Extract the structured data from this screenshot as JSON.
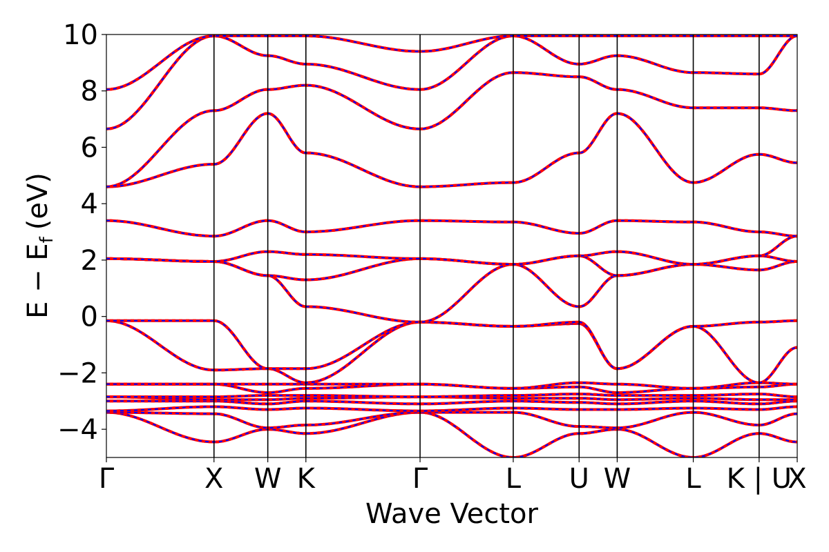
{
  "chart_data": {
    "type": "line",
    "title": "",
    "xlabel": "Wave Vector",
    "ylabel_main": "E − E",
    "ylabel_sub": "f",
    "ylabel_unit": "(eV)",
    "ylim": [
      -5,
      10
    ],
    "yticks": [
      {
        "value": 10,
        "label": "10"
      },
      {
        "value": 8,
        "label": "8"
      },
      {
        "value": 6,
        "label": "6"
      },
      {
        "value": 4,
        "label": "4"
      },
      {
        "value": 2,
        "label": "2"
      },
      {
        "value": 0,
        "label": "0"
      },
      {
        "value": -2,
        "label": "−2"
      },
      {
        "value": -4,
        "label": "−4"
      }
    ],
    "kpath_ticks": [
      {
        "label": "Γ",
        "k": 0.0
      },
      {
        "label": "X",
        "k": 1.0
      },
      {
        "label": "W",
        "k": 1.5
      },
      {
        "label": "K",
        "k": 1.854
      },
      {
        "label": "Γ",
        "k": 2.915
      },
      {
        "label": "L",
        "k": 3.781
      },
      {
        "label": "U",
        "k": 4.393
      },
      {
        "label": "W",
        "k": 4.747
      },
      {
        "label": "L",
        "k": 5.454
      },
      {
        "label": "K | U",
        "k": 6.066
      },
      {
        "label": "X",
        "k": 6.42
      }
    ],
    "grid": false,
    "series_colors": [
      "#ff0000",
      "#0000ff"
    ],
    "series": [
      {
        "name": "",
        "values": [
          [
            -3.4,
            -4.45,
            -4.0,
            -4.15,
            -3.4,
            -5.0,
            -4.15,
            -4.0,
            -5.0,
            -4.15,
            -4.45
          ],
          [
            -3.4,
            -3.45,
            -3.95,
            -3.85,
            -3.4,
            -3.4,
            -3.9,
            -3.95,
            -3.4,
            -3.85,
            -3.45
          ],
          [
            -3.35,
            -3.2,
            -3.3,
            -3.25,
            -3.35,
            -3.25,
            -3.3,
            -3.3,
            -3.25,
            -3.3,
            -3.2
          ],
          [
            -3.0,
            -3.0,
            -3.1,
            -3.0,
            -3.1,
            -3.0,
            -3.05,
            -3.1,
            -3.0,
            -3.1,
            -3.0
          ],
          [
            -2.85,
            -2.95,
            -2.95,
            -2.9,
            -2.85,
            -2.9,
            -2.9,
            -2.95,
            -2.9,
            -2.95,
            -2.95
          ],
          [
            -2.85,
            -2.85,
            -2.8,
            -2.8,
            -2.85,
            -2.8,
            -2.75,
            -2.8,
            -2.8,
            -2.75,
            -2.85
          ],
          [
            -2.4,
            -2.4,
            -2.7,
            -2.55,
            -2.4,
            -2.55,
            -2.5,
            -2.7,
            -2.55,
            -2.5,
            -2.4
          ],
          [
            -2.4,
            -2.4,
            -2.4,
            -2.4,
            -2.4,
            -2.55,
            -2.35,
            -2.4,
            -2.55,
            -2.35,
            -2.4
          ],
          [
            -0.15,
            -1.9,
            -1.85,
            -2.35,
            -0.2,
            -0.35,
            -0.25,
            -1.85,
            -0.35,
            -2.35,
            -1.1
          ],
          [
            -0.15,
            -0.15,
            -1.85,
            -1.85,
            -0.2,
            -0.35,
            -0.2,
            -1.85,
            -0.35,
            -0.2,
            -0.15
          ],
          [
            2.05,
            1.95,
            1.45,
            0.35,
            -0.2,
            1.85,
            0.35,
            1.45,
            1.85,
            1.65,
            1.95
          ],
          [
            2.05,
            1.95,
            1.45,
            1.3,
            2.05,
            1.85,
            2.15,
            1.45,
            1.85,
            2.15,
            1.95
          ],
          [
            2.05,
            1.95,
            2.3,
            2.2,
            2.05,
            1.85,
            2.15,
            2.3,
            1.85,
            2.15,
            2.85
          ],
          [
            3.4,
            2.85,
            3.4,
            3.0,
            3.4,
            3.35,
            2.95,
            3.4,
            3.35,
            3.0,
            2.85
          ],
          [
            4.6,
            5.4,
            7.2,
            5.8,
            4.6,
            4.75,
            5.8,
            7.2,
            4.75,
            5.75,
            5.45
          ],
          [
            4.6,
            7.3,
            8.05,
            8.2,
            6.65,
            8.65,
            8.5,
            8.05,
            7.4,
            7.4,
            7.3
          ],
          [
            6.65,
            9.95,
            9.25,
            8.95,
            8.05,
            9.95,
            8.95,
            9.25,
            8.65,
            8.6,
            9.95
          ],
          [
            8.05,
            9.95,
            9.95,
            9.95,
            9.4,
            9.95,
            9.95,
            9.95,
            9.95,
            9.95,
            9.95
          ]
        ]
      }
    ]
  }
}
